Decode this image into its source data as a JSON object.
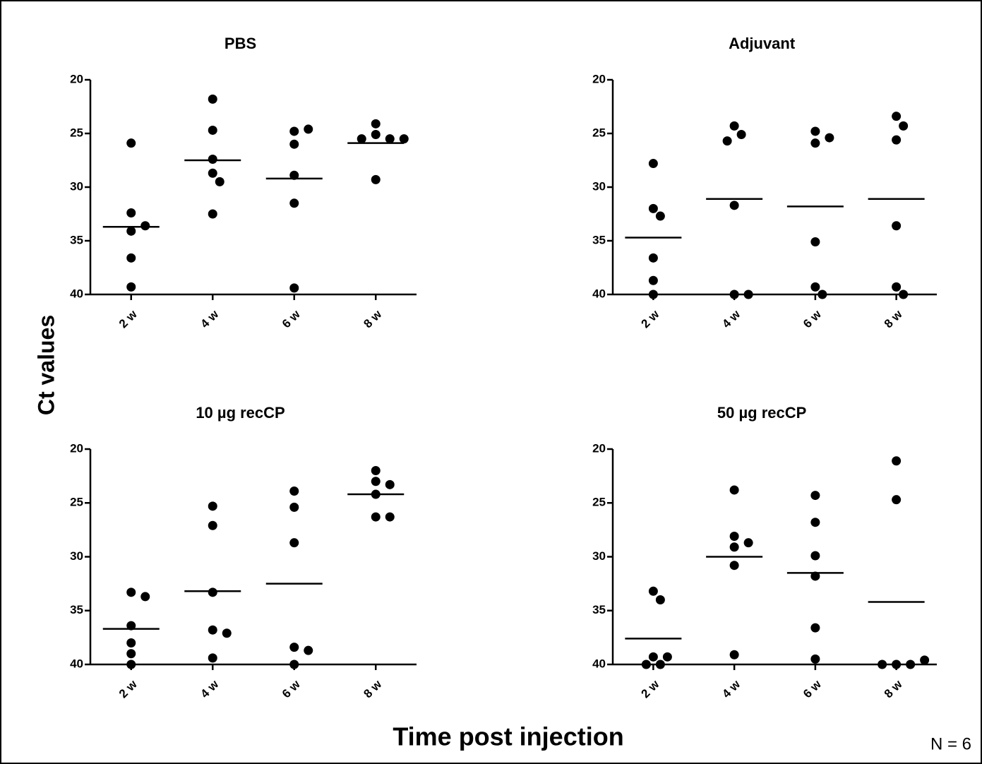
{
  "ylabel": "Ct values",
  "xlabel": "Time post injection",
  "note": "N = 6",
  "chart_data": [
    {
      "type": "dot",
      "title": "PBS",
      "categories": [
        "2 w",
        "4 w",
        "6 w",
        "8 w"
      ],
      "points": [
        [
          25.9,
          32.4,
          34.1,
          33.6,
          36.6,
          39.3
        ],
        [
          21.8,
          24.7,
          27.4,
          28.7,
          29.5,
          32.5
        ],
        [
          24.8,
          24.6,
          26.0,
          28.9,
          31.5,
          39.4
        ],
        [
          25.1,
          24.1,
          25.5,
          25.5,
          25.5,
          29.3
        ]
      ],
      "means": [
        33.7,
        27.5,
        29.2,
        25.9
      ],
      "color": "#000000",
      "ylim": [
        40,
        20
      ],
      "yticks": [
        20,
        25,
        30,
        35,
        40
      ]
    },
    {
      "type": "dot",
      "title": "Adjuvant",
      "categories": [
        "2 w",
        "4 w",
        "6 w",
        "8 w"
      ],
      "points": [
        [
          27.8,
          32.0,
          32.7,
          36.6,
          38.7,
          40
        ],
        [
          24.3,
          25.1,
          25.7,
          31.7,
          40,
          40
        ],
        [
          24.8,
          25.9,
          25.4,
          35.1,
          39.3,
          40
        ],
        [
          23.4,
          24.3,
          25.6,
          33.6,
          39.3,
          40
        ]
      ],
      "means": [
        34.7,
        31.1,
        31.8,
        31.1
      ],
      "color": "#000000",
      "ylim": [
        40,
        20
      ],
      "yticks": [
        20,
        25,
        30,
        35,
        40
      ]
    },
    {
      "type": "dot",
      "title": "10 µg recCP",
      "categories": [
        "2 w",
        "4 w",
        "6 w",
        "8 w"
      ],
      "points": [
        [
          33.3,
          33.7,
          36.4,
          38.0,
          39.0,
          40
        ],
        [
          25.3,
          27.1,
          33.3,
          36.8,
          37.1,
          39.4
        ],
        [
          23.9,
          25.4,
          28.7,
          38.4,
          38.7,
          40
        ],
        [
          22.0,
          23.0,
          23.3,
          24.2,
          26.3,
          26.3
        ]
      ],
      "means": [
        36.7,
        33.2,
        32.5,
        24.2
      ],
      "color": "#000000",
      "ylim": [
        40,
        20
      ],
      "yticks": [
        20,
        25,
        30,
        35,
        40
      ]
    },
    {
      "type": "dot",
      "title": "50 µg recCP",
      "categories": [
        "2 w",
        "4 w",
        "6 w",
        "8 w"
      ],
      "points": [
        [
          33.2,
          34.0,
          39.3,
          40,
          40,
          39.3
        ],
        [
          23.8,
          28.1,
          29.1,
          28.7,
          30.8,
          39.1
        ],
        [
          24.3,
          26.8,
          29.9,
          31.8,
          36.6,
          39.5
        ],
        [
          21.1,
          24.7,
          40,
          40,
          40,
          39.6
        ]
      ],
      "means": [
        37.6,
        30.0,
        31.5,
        34.2
      ],
      "color": "#000000",
      "ylim": [
        40,
        20
      ],
      "yticks": [
        20,
        25,
        30,
        35,
        40
      ]
    }
  ]
}
